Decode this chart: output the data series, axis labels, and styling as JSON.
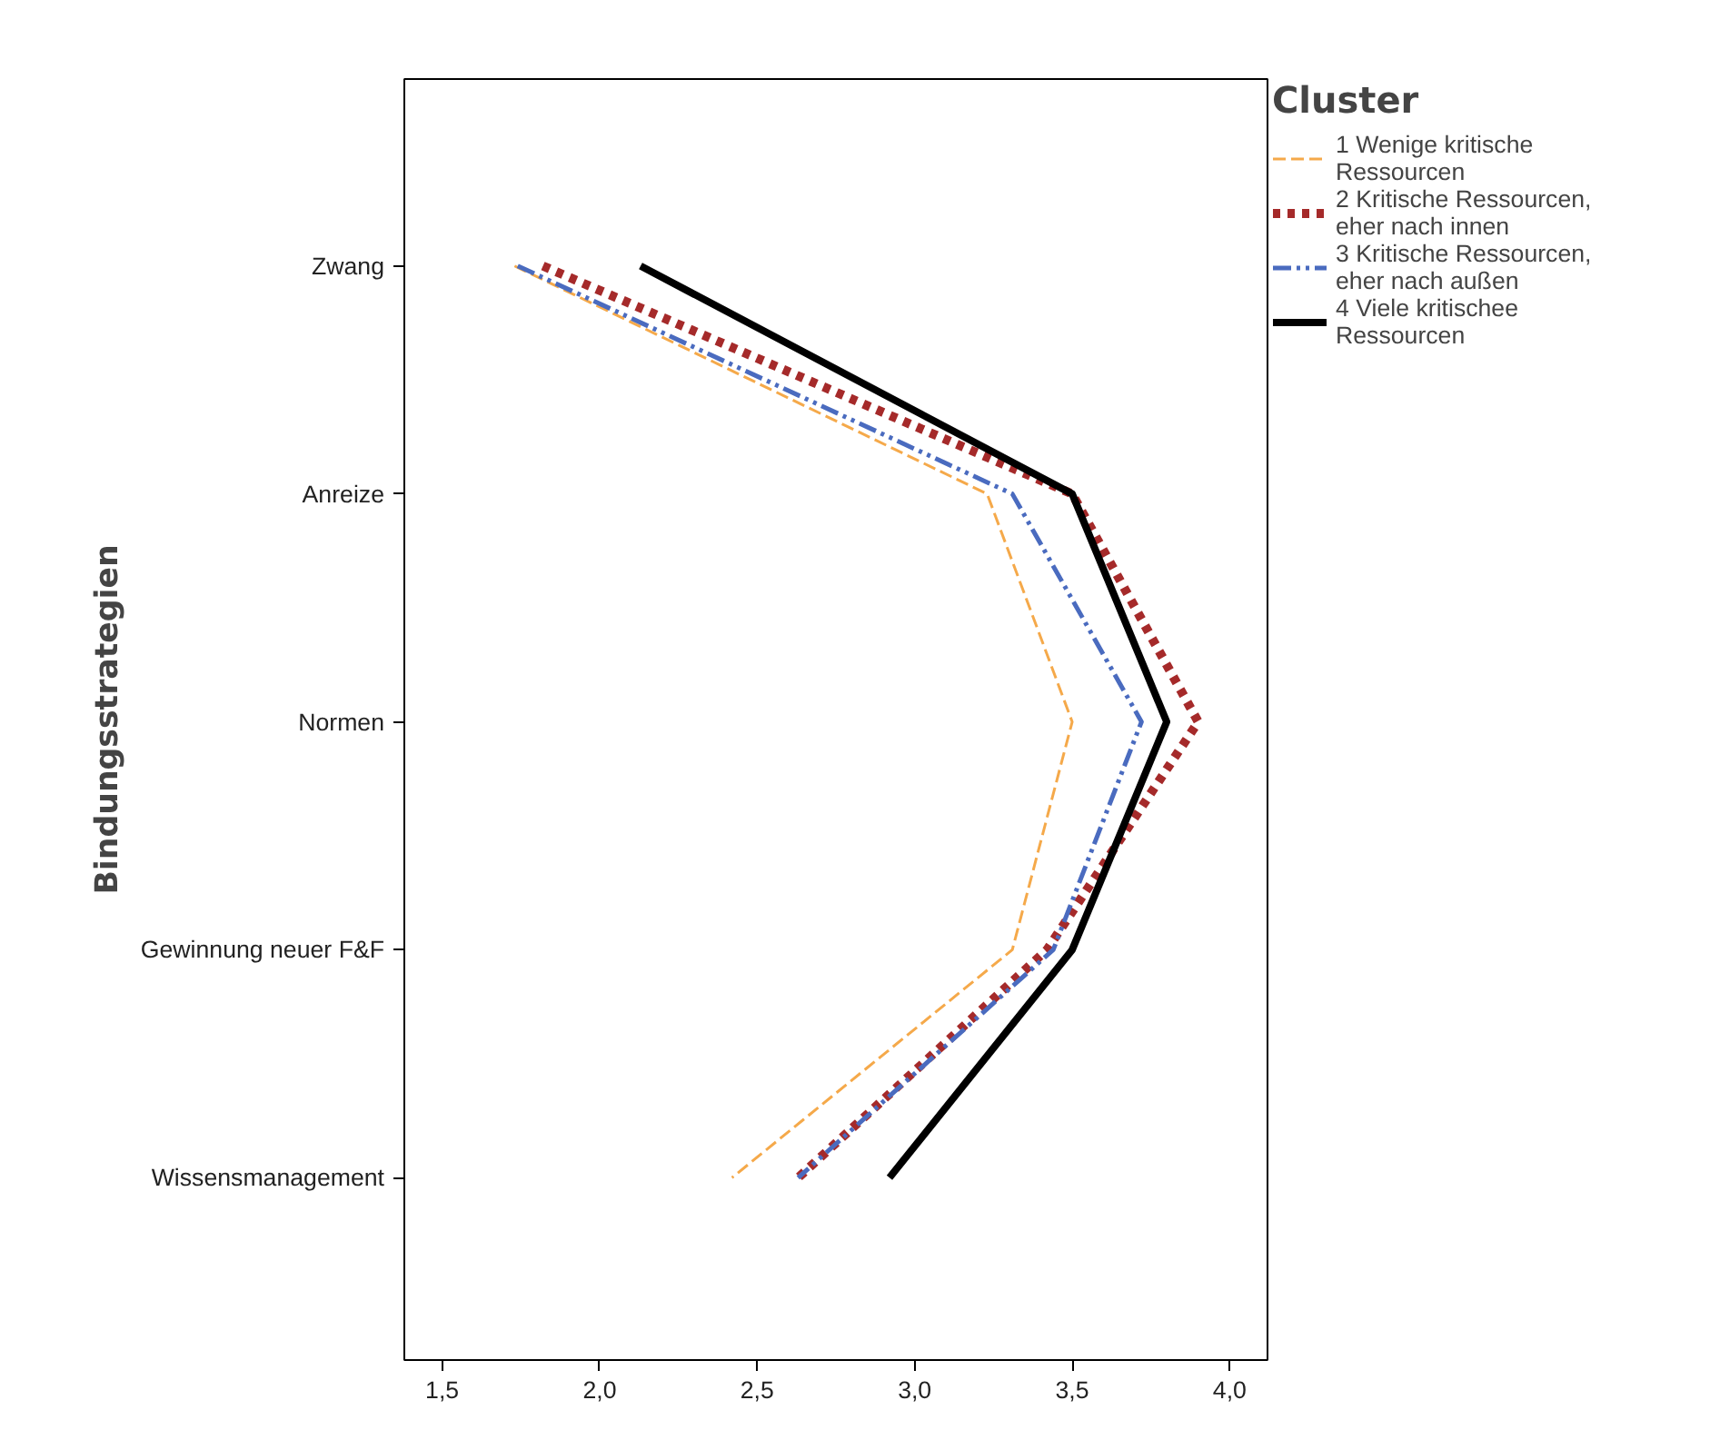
{
  "chart_data": {
    "type": "line",
    "orientation": "horizontal",
    "ylabel": "Bindungsstrategien",
    "legend_title": "Cluster",
    "legend": "right",
    "grid": false,
    "categories": [
      "Zwang",
      "Anreize",
      "Normen",
      "Gewinnung neuer F&F",
      "Wissensmanagement"
    ],
    "xlim": [
      1.38,
      4.12
    ],
    "xticks": [
      {
        "value": 1.5,
        "label": "1,5"
      },
      {
        "value": 2.0,
        "label": "2,0"
      },
      {
        "value": 2.5,
        "label": "2,5"
      },
      {
        "value": 3.0,
        "label": "3,0"
      },
      {
        "value": 3.5,
        "label": "3,5"
      },
      {
        "value": 4.0,
        "label": "4,0"
      }
    ],
    "series": [
      {
        "name": "1 Wenige kritische\nRessourcen",
        "color": "#f5a94a",
        "line_style": "dashed",
        "values": [
          1.73,
          3.23,
          3.5,
          3.31,
          2.42
        ]
      },
      {
        "name": "2 Kritische Ressourcen,\neher nach innen",
        "color": "#a52a2a",
        "line_style": "dotted",
        "values": [
          1.82,
          3.5,
          3.9,
          3.42,
          2.63
        ]
      },
      {
        "name": "3 Kritische Ressourcen,\neher nach außen",
        "color": "#4a6bbf",
        "line_style": "dashdot",
        "values": [
          1.74,
          3.31,
          3.72,
          3.44,
          2.63
        ]
      },
      {
        "name": "4 Viele kritischee\nRessourcen",
        "color": "#000000",
        "line_style": "solid",
        "values": [
          2.13,
          3.5,
          3.8,
          3.5,
          2.92
        ]
      }
    ]
  }
}
